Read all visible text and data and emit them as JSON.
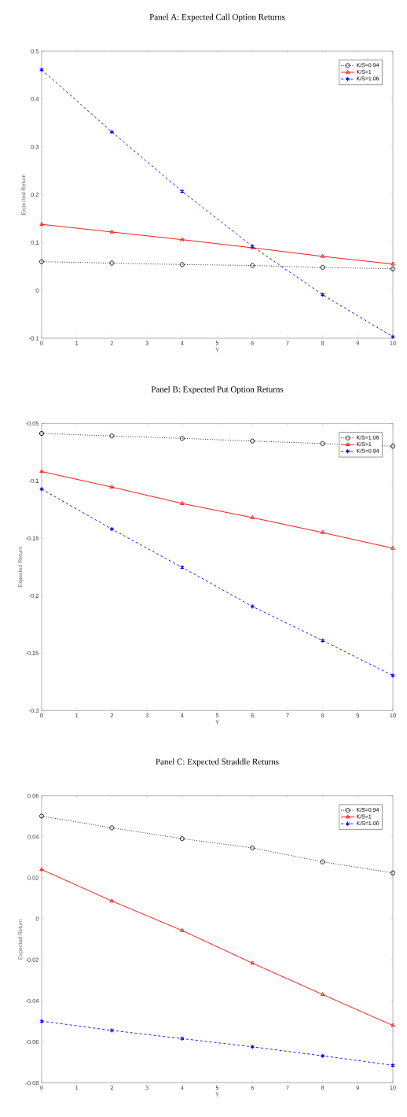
{
  "chart_data": [
    {
      "type": "line",
      "title": "Panel A: Expected Call Option Returns",
      "xlabel": "γ",
      "ylabel": "Expected Return",
      "x": [
        0,
        2,
        4,
        6,
        8,
        10
      ],
      "xlim": [
        0,
        10
      ],
      "ylim": [
        -0.1,
        0.5
      ],
      "xticks": [
        0,
        1,
        2,
        3,
        4,
        5,
        6,
        7,
        8,
        9,
        10
      ],
      "yticks": [
        -0.1,
        0,
        0.1,
        0.2,
        0.3,
        0.4,
        0.5
      ],
      "legend": "top right",
      "grid": false,
      "series": [
        {
          "name": "K/S=0.94",
          "color": "#000000",
          "marker": "circle",
          "line_style": "dotted",
          "values": [
            0.06,
            0.057,
            0.054,
            0.052,
            0.048,
            0.045
          ]
        },
        {
          "name": "K/S=1",
          "color": "#ff0000",
          "marker": "triangle",
          "line_style": "solid",
          "values": [
            0.138,
            0.122,
            0.106,
            0.089,
            0.071,
            0.055
          ]
        },
        {
          "name": "K/S=1.06",
          "color": "#0000ff",
          "marker": "cross",
          "line_style": "dashed",
          "values": [
            0.461,
            0.331,
            0.207,
            0.092,
            -0.009,
            -0.097
          ]
        }
      ]
    },
    {
      "type": "line",
      "title": "Panel B: Expected Put Option Returns",
      "xlabel": "γ",
      "ylabel": "Expected Return",
      "x": [
        0,
        2,
        4,
        6,
        8,
        10
      ],
      "xlim": [
        0,
        10
      ],
      "ylim": [
        -0.3,
        -0.05
      ],
      "xticks": [
        0,
        1,
        2,
        3,
        4,
        5,
        6,
        7,
        8,
        9,
        10
      ],
      "yticks": [
        -0.3,
        -0.25,
        -0.2,
        -0.15,
        -0.1,
        -0.05
      ],
      "legend": "top right",
      "grid": false,
      "series": [
        {
          "name": "K/S=1.06",
          "color": "#000000",
          "marker": "circle",
          "line_style": "dotted",
          "values": [
            -0.0587,
            -0.0609,
            -0.063,
            -0.0653,
            -0.0675,
            -0.0698
          ]
        },
        {
          "name": "K/S=1",
          "color": "#ff0000",
          "marker": "triangle",
          "line_style": "solid",
          "values": [
            -0.0919,
            -0.1054,
            -0.1197,
            -0.132,
            -0.145,
            -0.1587
          ]
        },
        {
          "name": "K/S=0.94",
          "color": "#0000ff",
          "marker": "cross",
          "line_style": "dashed",
          "values": [
            -0.1072,
            -0.142,
            -0.1753,
            -0.2093,
            -0.239,
            -0.2695
          ]
        }
      ]
    },
    {
      "type": "line",
      "title": "Panel C: Expected Straddle Returns",
      "xlabel": "γ",
      "ylabel": "Expected Return",
      "x": [
        0,
        2,
        4,
        6,
        8,
        10
      ],
      "xlim": [
        0,
        10
      ],
      "ylim": [
        -0.08,
        0.06
      ],
      "xticks": [
        0,
        1,
        2,
        3,
        4,
        5,
        6,
        7,
        8,
        9,
        10
      ],
      "yticks": [
        -0.08,
        -0.06,
        -0.04,
        -0.02,
        0,
        0.02,
        0.04,
        0.06
      ],
      "legend": "top right",
      "grid": false,
      "series": [
        {
          "name": "K/S=0.94",
          "color": "#000000",
          "marker": "circle",
          "line_style": "dotted",
          "values": [
            0.0501,
            0.0444,
            0.0391,
            0.0346,
            0.0278,
            0.0224
          ]
        },
        {
          "name": "K/S=1",
          "color": "#ff0000",
          "marker": "triangle",
          "line_style": "solid",
          "values": [
            0.024,
            0.0087,
            -0.0057,
            -0.0216,
            -0.0369,
            -0.052
          ]
        },
        {
          "name": "K/S=1.06",
          "color": "#0000ff",
          "marker": "cross",
          "line_style": "dashed",
          "values": [
            -0.0499,
            -0.0544,
            -0.0584,
            -0.0624,
            -0.0668,
            -0.0714
          ]
        }
      ]
    }
  ]
}
